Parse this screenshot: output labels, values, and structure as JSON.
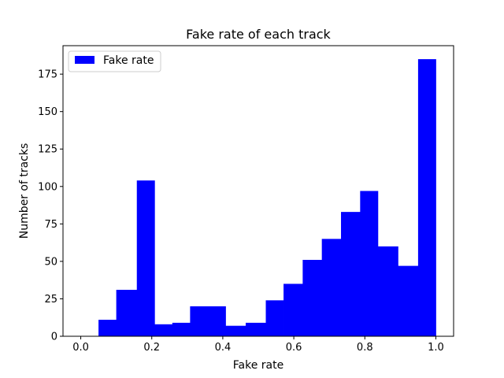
{
  "chart_data": {
    "type": "bar",
    "title": "Fake rate of each track",
    "xlabel": "Fake rate",
    "ylabel": "Number of tracks",
    "legend": {
      "label": "Fake rate",
      "placement": "top-left"
    },
    "color": "#0000ff",
    "xlim": [
      -0.05,
      1.05
    ],
    "ylim": [
      0,
      194
    ],
    "xticks": [
      0.0,
      0.2,
      0.4,
      0.6,
      0.8,
      1.0
    ],
    "xtick_labels": [
      "0.0",
      "0.2",
      "0.4",
      "0.6",
      "0.8",
      "1.0"
    ],
    "yticks": [
      0,
      25,
      50,
      75,
      100,
      125,
      150,
      175
    ],
    "ytick_labels": [
      "0",
      "25",
      "50",
      "75",
      "100",
      "125",
      "150",
      "175"
    ],
    "grid": false,
    "bins": [
      {
        "x0": 0.05,
        "x1": 0.1,
        "value": 11
      },
      {
        "x0": 0.1,
        "x1": 0.1579,
        "value": 31
      },
      {
        "x0": 0.1579,
        "x1": 0.2079,
        "value": 104
      },
      {
        "x0": 0.2079,
        "x1": 0.2579,
        "value": 8
      },
      {
        "x0": 0.2579,
        "x1": 0.3079,
        "value": 9
      },
      {
        "x0": 0.3079,
        "x1": 0.4079,
        "value": 20
      },
      {
        "x0": 0.4079,
        "x1": 0.4645,
        "value": 7
      },
      {
        "x0": 0.4645,
        "x1": 0.5211,
        "value": 9
      },
      {
        "x0": 0.5211,
        "x1": 0.5711,
        "value": 24
      },
      {
        "x0": 0.5711,
        "x1": 0.625,
        "value": 35
      },
      {
        "x0": 0.625,
        "x1": 0.6789,
        "value": 51
      },
      {
        "x0": 0.6789,
        "x1": 0.7329,
        "value": 65
      },
      {
        "x0": 0.7329,
        "x1": 0.7868,
        "value": 83
      },
      {
        "x0": 0.7868,
        "x1": 0.8368,
        "value": 97
      },
      {
        "x0": 0.8368,
        "x1": 0.8934,
        "value": 60
      },
      {
        "x0": 0.8934,
        "x1": 0.95,
        "value": 47
      },
      {
        "x0": 0.95,
        "x1": 1.0,
        "value": 185
      }
    ]
  }
}
